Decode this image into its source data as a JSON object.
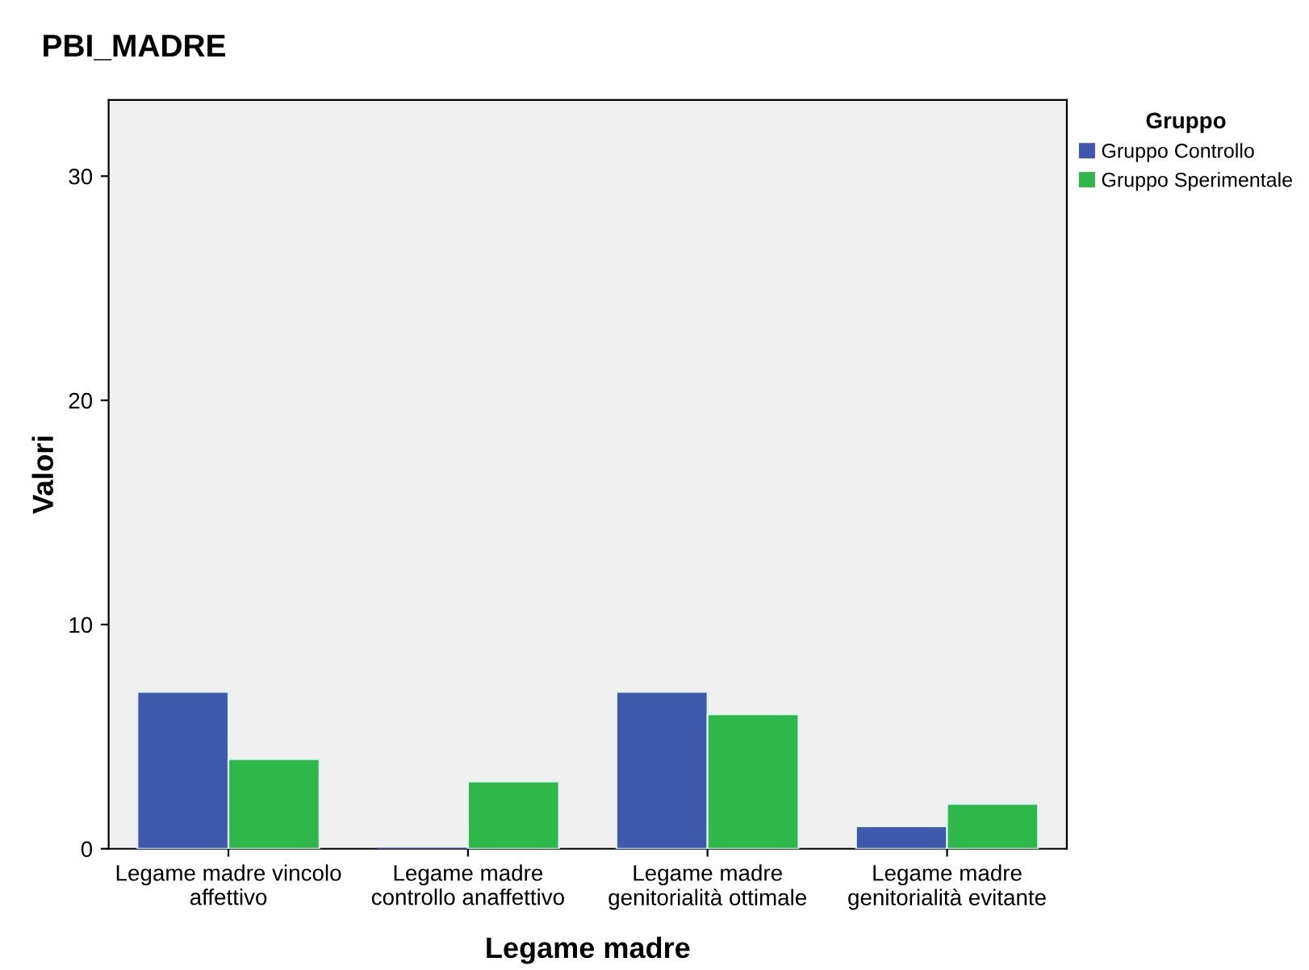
{
  "chart_data": {
    "type": "bar",
    "title": "PBI_MADRE",
    "xlabel": "Legame madre",
    "ylabel": "Valori",
    "legend_title": "Gruppo",
    "legend": "top right",
    "grid": false,
    "categories": [
      "Legame madre vincolo\naffettivo",
      "Legame madre\ncontrollo anaffettivo",
      "Legame madre\ngenitorialità ottimale",
      "Legame madre\ngenitorialità evitante"
    ],
    "series": [
      {
        "name": "Gruppo Controllo",
        "color": "#3e58ac",
        "values": [
          7,
          0,
          7,
          1
        ]
      },
      {
        "name": "Gruppo Sperimentale",
        "color": "#2fb84a",
        "values": [
          4,
          3,
          6,
          2
        ]
      }
    ],
    "ylim": [
      0,
      33.4
    ],
    "yticks": [
      0,
      10,
      20,
      30
    ]
  }
}
